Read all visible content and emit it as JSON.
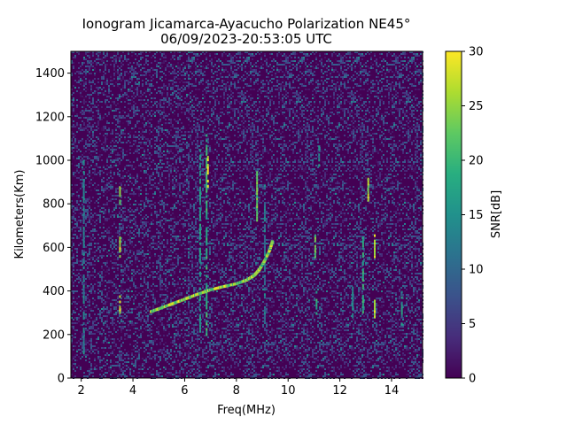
{
  "chart_data": {
    "type": "heatmap",
    "title_line1": "Ionogram Jicamarca-Ayacucho Polarization NE45°",
    "title_line2": "06/09/2023-20:53:05 UTC",
    "xlabel": "Freq(MHz)",
    "ylabel": "Kilometers(Km)",
    "colorbar_label": "SNR[dB]",
    "colormap": "viridis",
    "xlim": [
      1.6,
      15.2
    ],
    "ylim": [
      0,
      1500
    ],
    "clim": [
      0,
      30
    ],
    "x_ticks": [
      2,
      4,
      6,
      8,
      10,
      12,
      14
    ],
    "y_ticks": [
      0,
      200,
      400,
      600,
      800,
      1000,
      1200,
      1400
    ],
    "colorbar_ticks": [
      0,
      5,
      10,
      15,
      20,
      25,
      30
    ],
    "trace": {
      "name": "ionospheric echo",
      "points": [
        [
          4.7,
          305
        ],
        [
          5.0,
          318
        ],
        [
          5.5,
          340
        ],
        [
          6.0,
          362
        ],
        [
          6.5,
          385
        ],
        [
          7.0,
          405
        ],
        [
          7.5,
          420
        ],
        [
          8.0,
          433
        ],
        [
          8.4,
          450
        ],
        [
          8.7,
          472
        ],
        [
          8.9,
          500
        ],
        [
          9.1,
          540
        ],
        [
          9.3,
          590
        ],
        [
          9.4,
          630
        ]
      ]
    },
    "vertical_streaks": [
      {
        "freq": 2.1,
        "from": 120,
        "to": 1000,
        "snr": 13
      },
      {
        "freq": 3.5,
        "from": 300,
        "to": 380,
        "snr": 28
      },
      {
        "freq": 3.5,
        "from": 560,
        "to": 650,
        "snr": 27
      },
      {
        "freq": 3.5,
        "from": 800,
        "to": 880,
        "snr": 24
      },
      {
        "freq": 6.6,
        "from": 220,
        "to": 1050,
        "snr": 16
      },
      {
        "freq": 6.85,
        "from": 200,
        "to": 1120,
        "snr": 19
      },
      {
        "freq": 6.9,
        "from": 880,
        "to": 1020,
        "snr": 29
      },
      {
        "freq": 8.8,
        "from": 720,
        "to": 950,
        "snr": 22
      },
      {
        "freq": 9.1,
        "from": 250,
        "to": 950,
        "snr": 12
      },
      {
        "freq": 11.05,
        "from": 560,
        "to": 660,
        "snr": 22
      },
      {
        "freq": 11.1,
        "from": 300,
        "to": 400,
        "snr": 18
      },
      {
        "freq": 11.2,
        "from": 980,
        "to": 1080,
        "snr": 14
      },
      {
        "freq": 12.5,
        "from": 280,
        "to": 420,
        "snr": 14
      },
      {
        "freq": 12.9,
        "from": 300,
        "to": 650,
        "snr": 18
      },
      {
        "freq": 13.1,
        "from": 820,
        "to": 920,
        "snr": 26
      },
      {
        "freq": 13.35,
        "from": 280,
        "to": 360,
        "snr": 27
      },
      {
        "freq": 13.35,
        "from": 540,
        "to": 660,
        "snr": 27
      },
      {
        "freq": 14.4,
        "from": 250,
        "to": 400,
        "snr": 15
      }
    ]
  }
}
